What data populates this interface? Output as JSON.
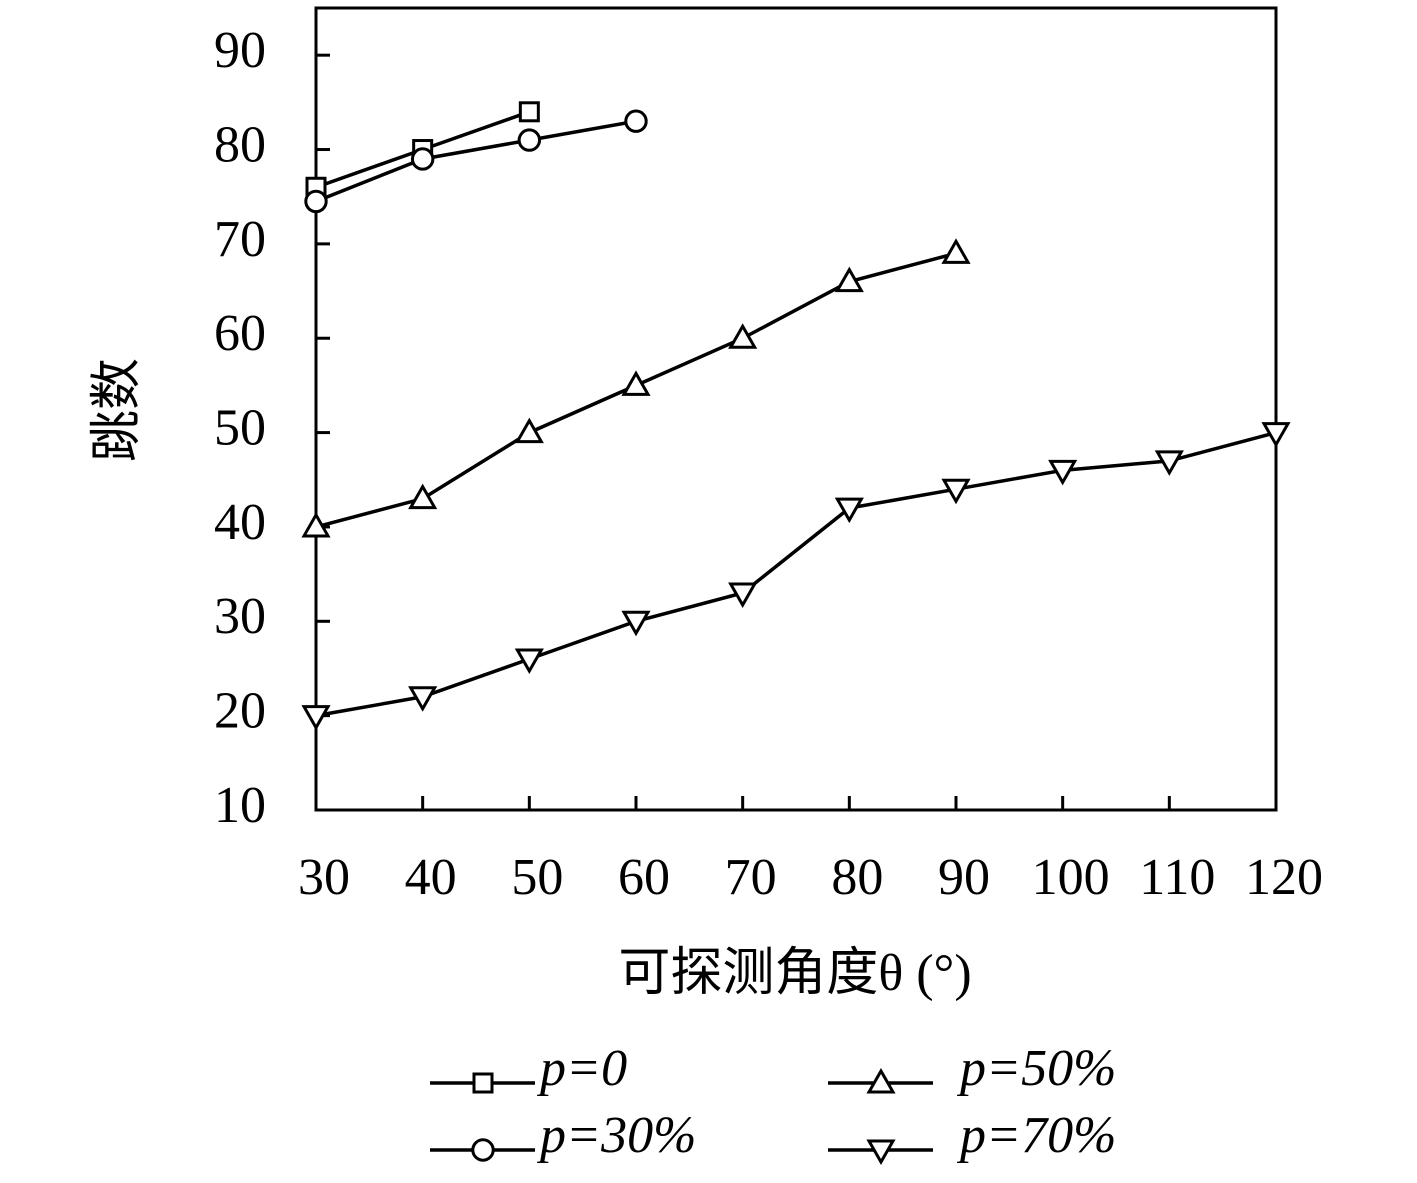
{
  "chart_data": {
    "type": "line",
    "xlabel": "可探测角度θ (°)",
    "ylabel": "跳数",
    "xlim": [
      30,
      120
    ],
    "ylim": [
      10,
      95
    ],
    "xticks": [
      30,
      40,
      50,
      60,
      70,
      80,
      90,
      100,
      110,
      120
    ],
    "yticks": [
      10,
      20,
      30,
      40,
      50,
      60,
      70,
      80,
      90
    ],
    "grid": false,
    "series": [
      {
        "name": "p=0",
        "color": "#000000",
        "marker": "square",
        "x": [
          30,
          40,
          50
        ],
        "values": [
          76,
          80,
          84
        ]
      },
      {
        "name": "p=30%",
        "color": "#000000",
        "marker": "circle",
        "x": [
          30,
          40,
          50,
          60
        ],
        "values": [
          74.5,
          79,
          81,
          83
        ]
      },
      {
        "name": "p=50%",
        "color": "#000000",
        "marker": "triangle-up",
        "x": [
          30,
          40,
          50,
          60,
          70,
          80,
          90
        ],
        "values": [
          40,
          43,
          50,
          55,
          60,
          66,
          69
        ]
      },
      {
        "name": "p=70%",
        "color": "#000000",
        "marker": "triangle-down",
        "x": [
          30,
          40,
          50,
          60,
          70,
          80,
          90,
          100,
          110,
          120
        ],
        "values": [
          20,
          22,
          26,
          30,
          33,
          42,
          44,
          46,
          47,
          50
        ]
      }
    ]
  }
}
